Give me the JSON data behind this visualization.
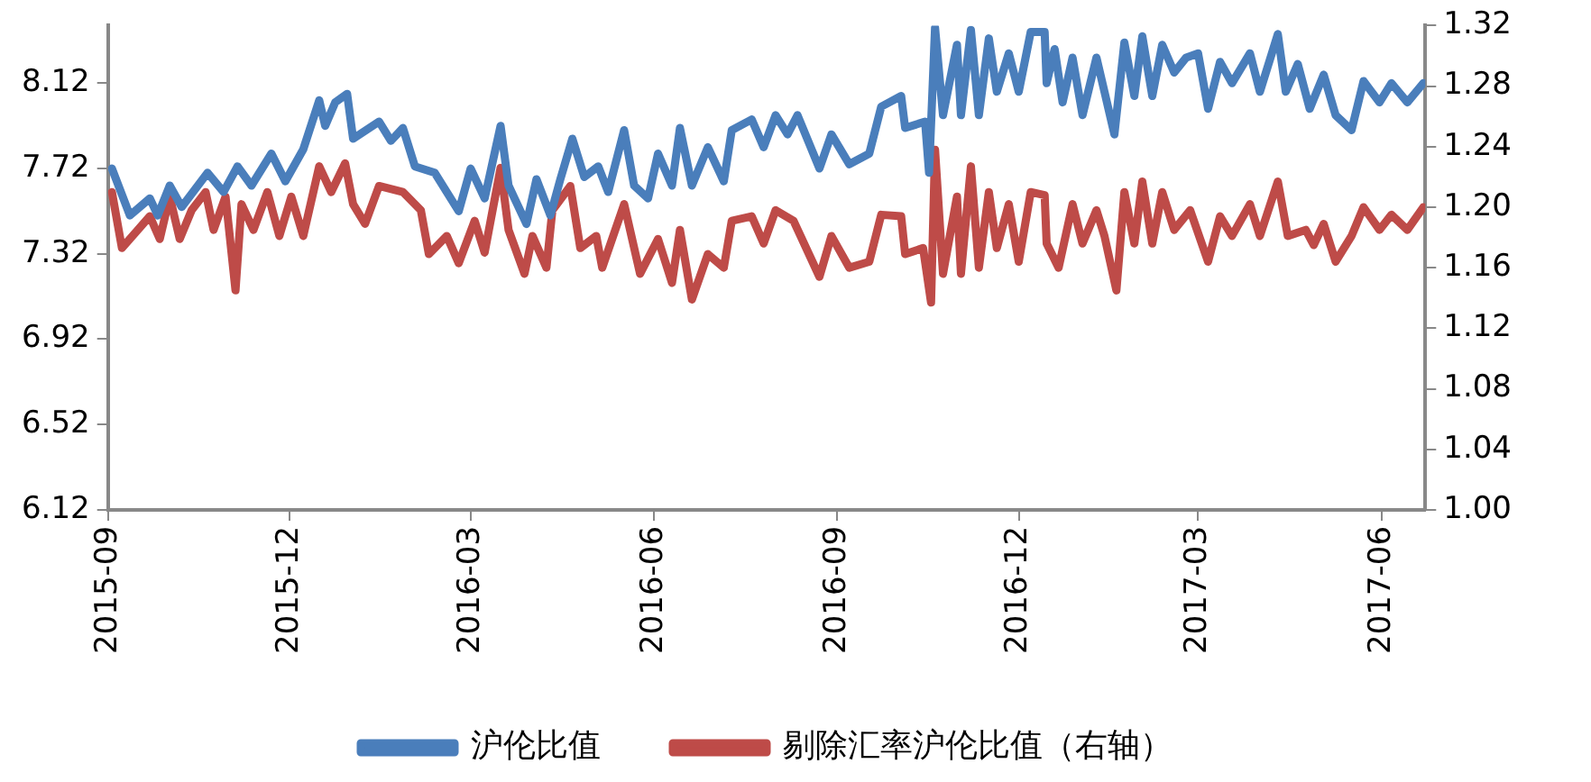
{
  "chart_data": {
    "type": "line",
    "xlim": [
      "2015-09-01",
      "2017-06-23"
    ],
    "xticks": [
      "2015-09",
      "2015-12",
      "2016-03",
      "2016-06",
      "2016-09",
      "2016-12",
      "2017-03",
      "2017-06"
    ],
    "ylim": [
      6.12,
      8.39
    ],
    "yticks": [
      6.12,
      6.52,
      6.92,
      7.32,
      7.72,
      8.12
    ],
    "y2lim": [
      1.0,
      1.32
    ],
    "y2ticks": [
      {
        "value": 1.0,
        "label": "1.00"
      },
      1.04,
      1.08,
      1.12,
      1.16,
      {
        "value": 1.2,
        "label": "1.20"
      },
      1.24,
      1.28,
      1.32
    ],
    "grid": false,
    "legend": "bottom",
    "marker": "none",
    "line_style": "solid",
    "series": [
      {
        "name": "沪伦比值",
        "color": "#4a7ebb",
        "x": [
          "2015-09-03",
          "2015-09-12",
          "2015-09-22",
          "2015-09-26",
          "2015-10-02",
          "2015-10-08",
          "2015-10-21",
          "2015-10-29",
          "2015-11-05",
          "2015-11-12",
          "2015-11-22",
          "2015-11-29",
          "2015-12-08",
          "2015-12-16",
          "2015-12-19",
          "2015-12-24",
          "2015-12-30",
          "2016-01-02",
          "2016-01-15",
          "2016-01-21",
          "2016-01-27",
          "2016-02-02",
          "2016-02-12",
          "2016-02-24",
          "2016-03-01",
          "2016-03-08",
          "2016-03-16",
          "2016-03-20",
          "2016-03-29",
          "2016-04-03",
          "2016-04-10",
          "2016-04-15",
          "2016-04-21",
          "2016-04-27",
          "2016-05-04",
          "2016-05-09",
          "2016-05-17",
          "2016-05-22",
          "2016-05-29",
          "2016-06-03",
          "2016-06-10",
          "2016-06-14",
          "2016-06-20",
          "2016-06-28",
          "2016-07-06",
          "2016-07-10",
          "2016-07-20",
          "2016-07-26",
          "2016-08-01",
          "2016-08-07",
          "2016-08-12",
          "2016-08-23",
          "2016-08-29",
          "2016-09-07",
          "2016-09-17",
          "2016-09-23",
          "2016-10-03",
          "2016-10-05",
          "2016-10-15",
          "2016-10-17",
          "2016-10-20",
          "2016-10-24",
          "2016-10-31",
          "2016-11-02",
          "2016-11-07",
          "2016-11-11",
          "2016-11-16",
          "2016-11-20",
          "2016-11-26",
          "2016-12-01",
          "2016-12-07",
          "2016-12-14",
          "2016-12-15",
          "2016-12-19",
          "2016-12-23",
          "2016-12-28",
          "2017-01-02",
          "2017-01-09",
          "2017-01-13",
          "2017-01-18",
          "2017-01-23",
          "2017-01-28",
          "2017-02-01",
          "2017-02-06",
          "2017-02-11",
          "2017-02-17",
          "2017-02-23",
          "2017-03-01",
          "2017-03-06",
          "2017-03-12",
          "2017-03-18",
          "2017-03-27",
          "2017-04-01",
          "2017-04-10",
          "2017-04-14",
          "2017-04-20",
          "2017-04-26",
          "2017-05-03",
          "2017-05-09",
          "2017-05-17",
          "2017-05-23",
          "2017-05-31",
          "2017-06-06",
          "2017-06-14",
          "2017-06-22"
        ],
        "values": [
          7.72,
          7.5,
          7.58,
          7.5,
          7.64,
          7.54,
          7.7,
          7.61,
          7.73,
          7.64,
          7.79,
          7.66,
          7.81,
          8.04,
          7.92,
          8.03,
          8.07,
          7.86,
          7.94,
          7.85,
          7.91,
          7.73,
          7.7,
          7.52,
          7.72,
          7.58,
          7.92,
          7.64,
          7.46,
          7.67,
          7.5,
          7.67,
          7.86,
          7.68,
          7.73,
          7.61,
          7.9,
          7.64,
          7.58,
          7.79,
          7.64,
          7.91,
          7.64,
          7.82,
          7.66,
          7.9,
          7.95,
          7.82,
          7.97,
          7.88,
          7.97,
          7.72,
          7.88,
          7.74,
          7.79,
          8.01,
          8.06,
          7.91,
          7.94,
          7.7,
          8.38,
          7.97,
          8.3,
          7.97,
          8.37,
          7.97,
          8.33,
          8.08,
          8.26,
          8.08,
          8.36,
          8.36,
          8.12,
          8.28,
          8.03,
          8.24,
          7.97,
          8.24,
          8.08,
          7.88,
          8.31,
          8.06,
          8.34,
          8.06,
          8.3,
          8.17,
          8.24,
          8.26,
          8.0,
          8.22,
          8.12,
          8.26,
          8.08,
          8.35,
          8.08,
          8.21,
          8.0,
          8.16,
          7.97,
          7.9,
          8.13,
          8.03,
          8.12,
          8.03,
          8.12
        ]
      },
      {
        "name": "剔除汇率沪伦比值（右轴）",
        "color": "#be4b48",
        "axis": "y2",
        "x": [
          "2015-09-03",
          "2015-09-08",
          "2015-09-22",
          "2015-09-27",
          "2015-10-02",
          "2015-10-07",
          "2015-10-13",
          "2015-10-20",
          "2015-10-24",
          "2015-10-30",
          "2015-11-04",
          "2015-11-07",
          "2015-11-13",
          "2015-11-20",
          "2015-11-26",
          "2015-12-02",
          "2015-12-08",
          "2015-12-16",
          "2015-12-22",
          "2015-12-29",
          "2016-01-02",
          "2016-01-08",
          "2016-01-15",
          "2016-01-27",
          "2016-02-05",
          "2016-02-09",
          "2016-02-18",
          "2016-02-24",
          "2016-03-03",
          "2016-03-08",
          "2016-03-16",
          "2016-03-20",
          "2016-03-28",
          "2016-04-01",
          "2016-04-08",
          "2016-04-11",
          "2016-04-20",
          "2016-04-25",
          "2016-05-03",
          "2016-05-06",
          "2016-05-17",
          "2016-05-25",
          "2016-06-03",
          "2016-06-10",
          "2016-06-14",
          "2016-06-20",
          "2016-06-28",
          "2016-07-06",
          "2016-07-10",
          "2016-07-20",
          "2016-07-26",
          "2016-08-01",
          "2016-08-10",
          "2016-08-23",
          "2016-08-29",
          "2016-09-07",
          "2016-09-17",
          "2016-09-23",
          "2016-10-03",
          "2016-10-05",
          "2016-10-14",
          "2016-10-18",
          "2016-10-20",
          "2016-10-24",
          "2016-10-31",
          "2016-11-02",
          "2016-11-07",
          "2016-11-11",
          "2016-11-16",
          "2016-11-20",
          "2016-11-26",
          "2016-12-01",
          "2016-12-07",
          "2016-12-14",
          "2016-12-15",
          "2016-12-21",
          "2016-12-28",
          "2017-01-02",
          "2017-01-09",
          "2017-01-13",
          "2017-01-19",
          "2017-01-23",
          "2017-01-28",
          "2017-02-01",
          "2017-02-06",
          "2017-02-11",
          "2017-02-17",
          "2017-02-25",
          "2017-03-06",
          "2017-03-12",
          "2017-03-18",
          "2017-03-27",
          "2017-04-01",
          "2017-04-10",
          "2017-04-15",
          "2017-04-24",
          "2017-04-28",
          "2017-05-03",
          "2017-05-09",
          "2017-05-17",
          "2017-05-23",
          "2017-05-31",
          "2017-06-06",
          "2017-06-14",
          "2017-06-22"
        ],
        "values": [
          1.21,
          1.173,
          1.194,
          1.179,
          1.207,
          1.179,
          1.198,
          1.21,
          1.185,
          1.207,
          1.145,
          1.202,
          1.185,
          1.21,
          1.181,
          1.207,
          1.181,
          1.227,
          1.21,
          1.229,
          1.202,
          1.189,
          1.214,
          1.21,
          1.198,
          1.169,
          1.181,
          1.163,
          1.191,
          1.17,
          1.226,
          1.185,
          1.156,
          1.181,
          1.16,
          1.198,
          1.214,
          1.173,
          1.181,
          1.16,
          1.202,
          1.156,
          1.179,
          1.15,
          1.185,
          1.139,
          1.169,
          1.16,
          1.191,
          1.194,
          1.176,
          1.198,
          1.191,
          1.154,
          1.181,
          1.16,
          1.164,
          1.195,
          1.194,
          1.169,
          1.173,
          1.137,
          1.238,
          1.156,
          1.207,
          1.156,
          1.227,
          1.16,
          1.21,
          1.173,
          1.202,
          1.164,
          1.21,
          1.208,
          1.176,
          1.16,
          1.202,
          1.176,
          1.198,
          1.181,
          1.145,
          1.21,
          1.176,
          1.217,
          1.176,
          1.21,
          1.185,
          1.198,
          1.164,
          1.194,
          1.181,
          1.202,
          1.181,
          1.217,
          1.181,
          1.185,
          1.175,
          1.189,
          1.164,
          1.181,
          1.2,
          1.185,
          1.195,
          1.185,
          1.2
        ]
      }
    ]
  }
}
